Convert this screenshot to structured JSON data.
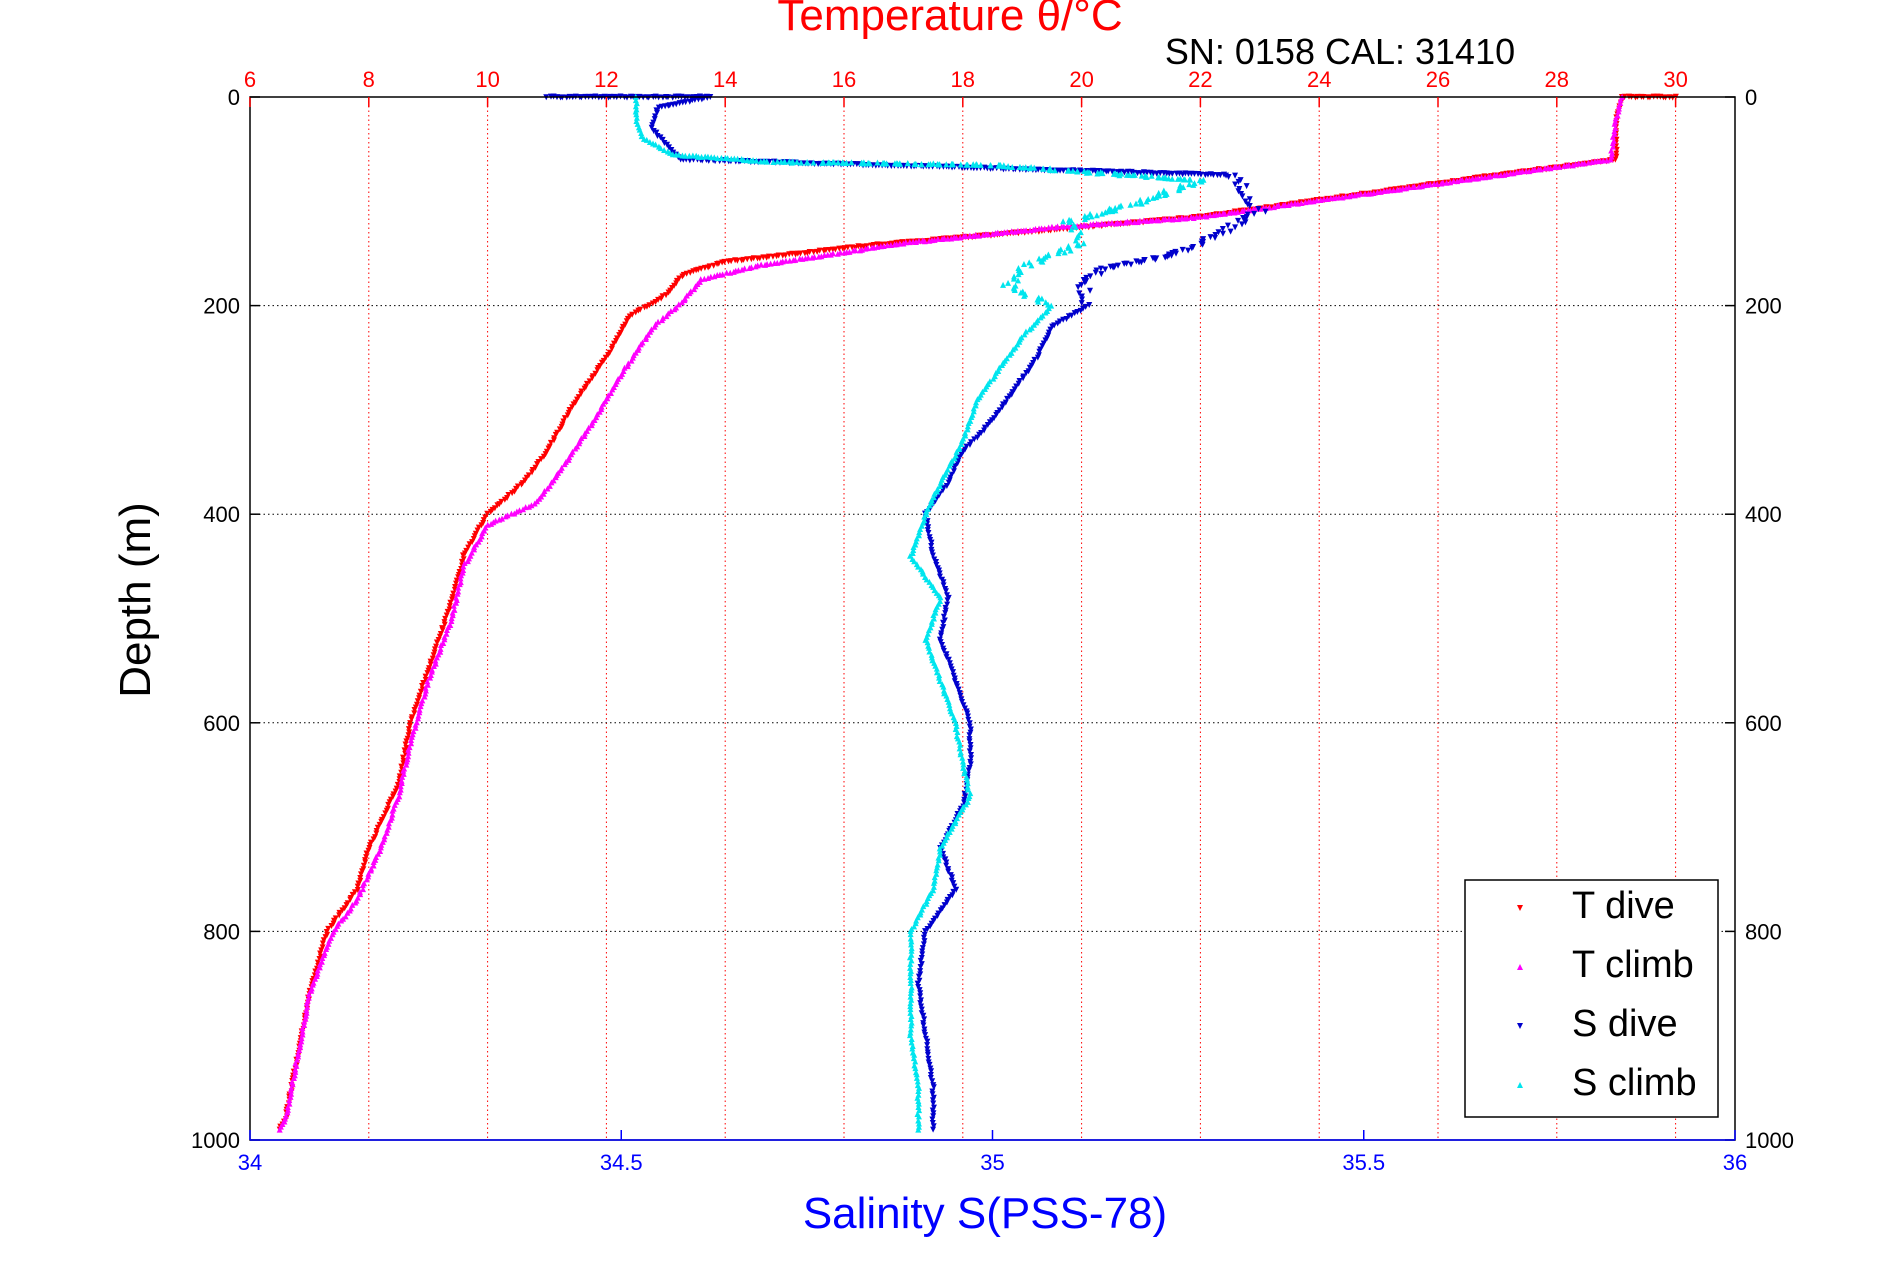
{
  "chart_data": {
    "type": "scatter",
    "title": "Temperature θ/°C",
    "subtitle": "SN: 0158  CAL: 31410",
    "xlabel": "Salinity S(PSS-78)",
    "ylabel": "Depth (m)",
    "x_bottom": {
      "label": "Salinity S(PSS-78)",
      "range": [
        34,
        36
      ],
      "ticks": [
        "34",
        "34.5",
        "35",
        "35.5",
        "36"
      ],
      "color": "#0000ff"
    },
    "x_top": {
      "label": "Temperature θ/°C",
      "range": [
        6,
        31
      ],
      "ticks": [
        "6",
        "8",
        "10",
        "12",
        "14",
        "16",
        "18",
        "20",
        "22",
        "24",
        "26",
        "28",
        "30"
      ],
      "color": "#ff0000"
    },
    "y": {
      "label": "Depth (m)",
      "range": [
        0,
        1000
      ],
      "reversed": true,
      "ticks": [
        "0",
        "200",
        "400",
        "600",
        "800",
        "1000"
      ]
    },
    "grid": true,
    "legend_position": "bottom-right",
    "series": [
      {
        "name": "T dive",
        "axis": "temperature",
        "color": "#ff0000",
        "marker": "triangle-down",
        "points": [
          [
            30.0,
            0
          ],
          [
            29.1,
            0
          ],
          [
            29.0,
            20
          ],
          [
            29.0,
            60
          ],
          [
            27.0,
            75
          ],
          [
            24.5,
            95
          ],
          [
            22.0,
            115
          ],
          [
            19.0,
            130
          ],
          [
            16.5,
            142
          ],
          [
            14.0,
            158
          ],
          [
            13.3,
            170
          ],
          [
            13.0,
            190
          ],
          [
            12.4,
            210
          ],
          [
            12.0,
            250
          ],
          [
            11.5,
            290
          ],
          [
            11.0,
            340
          ],
          [
            10.6,
            370
          ],
          [
            10.0,
            400
          ],
          [
            9.6,
            440
          ],
          [
            9.3,
            500
          ],
          [
            9.0,
            550
          ],
          [
            8.7,
            600
          ],
          [
            8.5,
            660
          ],
          [
            8.0,
            720
          ],
          [
            7.8,
            760
          ],
          [
            7.3,
            800
          ],
          [
            7.0,
            860
          ],
          [
            6.8,
            920
          ],
          [
            6.6,
            980
          ],
          [
            6.5,
            990
          ]
        ]
      },
      {
        "name": "T climb",
        "axis": "temperature",
        "color": "#ff00ff",
        "marker": "triangle-up",
        "points": [
          [
            29.1,
            0
          ],
          [
            29.0,
            20
          ],
          [
            28.9,
            60
          ],
          [
            27.0,
            75
          ],
          [
            24.5,
            95
          ],
          [
            22.0,
            115
          ],
          [
            19.5,
            125
          ],
          [
            17.0,
            140
          ],
          [
            14.5,
            162
          ],
          [
            13.6,
            175
          ],
          [
            13.3,
            195
          ],
          [
            12.8,
            220
          ],
          [
            12.2,
            270
          ],
          [
            11.8,
            310
          ],
          [
            11.2,
            360
          ],
          [
            10.8,
            390
          ],
          [
            10.0,
            410
          ],
          [
            9.6,
            450
          ],
          [
            9.4,
            500
          ],
          [
            9.0,
            560
          ],
          [
            8.7,
            620
          ],
          [
            8.5,
            670
          ],
          [
            8.2,
            720
          ],
          [
            7.8,
            770
          ],
          [
            7.4,
            800
          ],
          [
            7.0,
            860
          ],
          [
            6.8,
            920
          ],
          [
            6.6,
            980
          ],
          [
            6.5,
            990
          ]
        ]
      },
      {
        "name": "S dive",
        "axis": "salinity",
        "color": "#0000cc",
        "marker": "triangle-down",
        "points": [
          [
            34.4,
            0
          ],
          [
            34.62,
            0
          ],
          [
            34.55,
            10
          ],
          [
            34.54,
            30
          ],
          [
            34.58,
            60
          ],
          [
            35.32,
            75
          ],
          [
            35.34,
            90
          ],
          [
            35.36,
            110
          ],
          [
            35.31,
            130
          ],
          [
            35.25,
            150
          ],
          [
            35.15,
            165
          ],
          [
            35.12,
            180
          ],
          [
            35.13,
            200
          ],
          [
            35.08,
            220
          ],
          [
            35.06,
            250
          ],
          [
            35.03,
            280
          ],
          [
            35.0,
            310
          ],
          [
            34.96,
            340
          ],
          [
            34.94,
            370
          ],
          [
            34.91,
            400
          ],
          [
            34.92,
            440
          ],
          [
            34.94,
            480
          ],
          [
            34.93,
            520
          ],
          [
            34.95,
            560
          ],
          [
            34.97,
            600
          ],
          [
            34.97,
            640
          ],
          [
            34.96,
            680
          ],
          [
            34.93,
            720
          ],
          [
            34.95,
            760
          ],
          [
            34.91,
            800
          ],
          [
            34.9,
            850
          ],
          [
            34.91,
            900
          ],
          [
            34.92,
            950
          ],
          [
            34.92,
            990
          ]
        ]
      },
      {
        "name": "S climb",
        "axis": "salinity",
        "color": "#00e5ee",
        "marker": "triangle-up",
        "points": [
          [
            34.52,
            0
          ],
          [
            34.52,
            20
          ],
          [
            34.53,
            40
          ],
          [
            34.57,
            55
          ],
          [
            34.7,
            62
          ],
          [
            35.0,
            65
          ],
          [
            35.28,
            80
          ],
          [
            35.2,
            100
          ],
          [
            35.1,
            120
          ],
          [
            35.12,
            140
          ],
          [
            35.05,
            160
          ],
          [
            35.02,
            180
          ],
          [
            35.08,
            200
          ],
          [
            35.04,
            230
          ],
          [
            35.01,
            260
          ],
          [
            34.98,
            290
          ],
          [
            34.96,
            330
          ],
          [
            34.93,
            370
          ],
          [
            34.91,
            400
          ],
          [
            34.89,
            440
          ],
          [
            34.93,
            480
          ],
          [
            34.91,
            520
          ],
          [
            34.93,
            560
          ],
          [
            34.95,
            600
          ],
          [
            34.96,
            640
          ],
          [
            34.97,
            670
          ],
          [
            34.93,
            720
          ],
          [
            34.92,
            760
          ],
          [
            34.89,
            800
          ],
          [
            34.89,
            850
          ],
          [
            34.89,
            900
          ],
          [
            34.9,
            950
          ],
          [
            34.9,
            990
          ]
        ]
      }
    ]
  }
}
